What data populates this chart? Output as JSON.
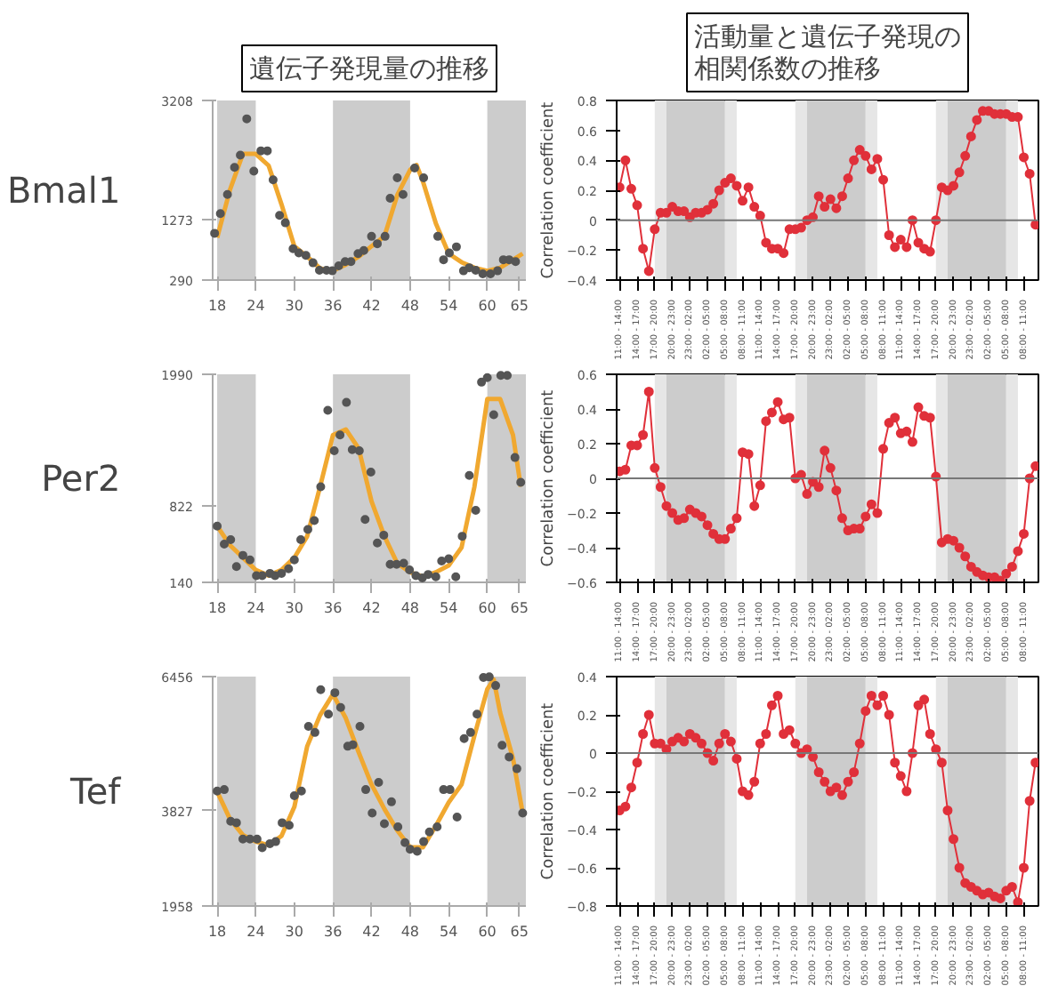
{
  "chart_data": [
    {
      "type": "scatter",
      "title": "遺伝子発現量の推移",
      "ylabel": "Bmal1",
      "xlim": [
        17.3,
        66
      ],
      "ylim": [
        290,
        3208
      ],
      "xticks": [
        18,
        24,
        30,
        36,
        42,
        48,
        54,
        60,
        65
      ],
      "yticks": [
        290,
        1273,
        3208
      ],
      "grid": false,
      "marker": "circle",
      "bands": [
        {
          "axis": "x",
          "from": 18,
          "to": 24,
          "color": "#cccccc"
        },
        {
          "axis": "x",
          "from": 36,
          "to": 48,
          "color": "#cccccc"
        },
        {
          "axis": "x",
          "from": 60,
          "to": 66,
          "color": "#cccccc"
        }
      ],
      "series": [
        {
          "type": "scatter",
          "color": "#555555",
          "x": [
            17.6,
            18.5,
            19.6,
            20.7,
            21.6,
            22.6,
            23.7,
            24.8,
            25.8,
            26.7,
            27.7,
            28.6,
            29.8,
            30.7,
            31.8,
            32.9,
            33.9,
            35,
            35.9,
            36.9,
            37.9,
            38.8,
            39.9,
            40.8,
            42,
            42.9,
            44.1,
            44.9,
            46,
            46.9,
            48.7,
            50.1,
            52.3,
            53.2,
            54.1,
            55.2,
            56.3,
            57.2,
            58.2,
            59.3,
            60.5,
            61.6,
            62.5,
            63.4,
            64.4
          ],
          "values": [
            1050,
            1370,
            1680,
            2120,
            2320,
            2910,
            2060,
            2390,
            2390,
            1920,
            1340,
            1220,
            800,
            730,
            690,
            570,
            450,
            450,
            440,
            520,
            590,
            590,
            720,
            770,
            1000,
            880,
            1000,
            1620,
            1950,
            1680,
            2110,
            1950,
            1000,
            620,
            730,
            830,
            440,
            490,
            450,
            390,
            390,
            440,
            620,
            620,
            590
          ]
        },
        {
          "type": "line",
          "marker": "none",
          "color": "#f0a830",
          "x": [
            18,
            20,
            22,
            24,
            26,
            28,
            30,
            32,
            34,
            36,
            38,
            40,
            42,
            44,
            46,
            48,
            49,
            50,
            52,
            54,
            56,
            58,
            60,
            62,
            64,
            65.5
          ],
          "values": [
            980,
            1760,
            2340,
            2340,
            2150,
            1520,
            840,
            670,
            480,
            440,
            540,
            670,
            840,
            1000,
            1670,
            2080,
            2160,
            1890,
            1210,
            720,
            580,
            490,
            440,
            490,
            620,
            720
          ]
        }
      ]
    },
    {
      "type": "line",
      "title": "活動量と遺伝子発現の相関係数の推移",
      "ylabel": "Correlation coefficient",
      "ylim": [
        -0.4,
        0.8
      ],
      "yticks": [
        -0.4,
        -0.2,
        0,
        0.2,
        0.4,
        0.6,
        0.8
      ],
      "categories": [
        "11:00 - 14:00",
        null,
        null,
        "14:00 - 17:00",
        null,
        null,
        "17:00 - 20:00",
        null,
        null,
        "20:00 - 23:00",
        null,
        null,
        "23:00 - 02:00",
        null,
        null,
        "02:00 - 05:00",
        null,
        null,
        "05:00 - 08:00",
        null,
        null,
        "08:00 - 11:00",
        null,
        null,
        "11:00 - 14:00",
        null,
        null,
        "14:00 - 17:00",
        null,
        null,
        "17:00 - 20:00",
        null,
        null,
        "20:00 - 23:00",
        null,
        null,
        "23:00 - 02:00",
        null,
        null,
        "02:00 - 05:00",
        null,
        null,
        "05:00 - 08:00",
        null,
        null,
        "08:00 - 11:00",
        null,
        null,
        "11:00 - 14:00",
        null,
        null,
        "14:00 - 17:00",
        null,
        null,
        "17:00 - 20:00",
        null,
        null,
        "20:00 - 23:00",
        null,
        null,
        "23:00 - 02:00",
        null,
        null,
        "02:00 - 05:00",
        null,
        null,
        "05:00 - 08:00",
        null,
        null,
        "08:00 - 11:00",
        null,
        null
      ],
      "grid": false,
      "marker": "circle",
      "ref_lines": [
        {
          "axis": "y",
          "value": 0,
          "color": "#777777"
        }
      ],
      "series": [
        {
          "color": "#e0303a",
          "values": [
            0.22,
            0.4,
            0.21,
            0.1,
            -0.19,
            -0.34,
            -0.06,
            0.05,
            0.05,
            0.09,
            0.06,
            0.06,
            0.02,
            0.05,
            0.05,
            0.07,
            0.11,
            0.2,
            0.25,
            0.28,
            0.23,
            0.13,
            0.22,
            0.09,
            0.03,
            -0.15,
            -0.19,
            -0.19,
            -0.22,
            -0.06,
            -0.06,
            -0.05,
            0,
            0.02,
            0.16,
            0.09,
            0.14,
            0.08,
            0.16,
            0.28,
            0.4,
            0.47,
            0.43,
            0.34,
            0.41,
            0.27,
            -0.1,
            -0.18,
            -0.13,
            -0.18,
            0,
            -0.15,
            -0.19,
            -0.21,
            0,
            0.22,
            0.2,
            0.23,
            0.32,
            0.43,
            0.56,
            0.67,
            0.73,
            0.73,
            0.71,
            0.71,
            0.71,
            0.69,
            0.69,
            0.42,
            0.31,
            -0.03
          ]
        }
      ]
    },
    {
      "type": "scatter",
      "ylabel": "Per2",
      "xlim": [
        17.3,
        66
      ],
      "ylim": [
        140,
        1990
      ],
      "xticks": [
        18,
        24,
        30,
        36,
        42,
        48,
        54,
        60,
        65
      ],
      "yticks": [
        140,
        822,
        1990
      ],
      "grid": false,
      "marker": "circle",
      "bands": [
        {
          "axis": "x",
          "from": 18,
          "to": 24,
          "color": "#cccccc"
        },
        {
          "axis": "x",
          "from": 36,
          "to": 48,
          "color": "#cccccc"
        },
        {
          "axis": "x",
          "from": 60,
          "to": 66,
          "color": "#cccccc"
        }
      ],
      "series": [
        {
          "type": "scatter",
          "color": "#555555",
          "x": [
            18,
            19.1,
            20.1,
            21,
            22,
            23.1,
            24.1,
            25,
            26.2,
            27,
            28,
            29.1,
            30,
            31,
            32.1,
            33.1,
            34.1,
            35.2,
            36.2,
            37.1,
            38.1,
            39,
            40.1,
            41,
            41.9,
            42.9,
            43.9,
            44.9,
            45.9,
            47,
            47.9,
            48.9,
            49.9,
            50.8,
            52,
            52.9,
            54,
            55.1,
            56.1,
            57.2,
            58.2,
            59.1,
            60,
            61,
            62.1,
            63.1,
            64.3,
            65.2
          ],
          "values": [
            640,
            480,
            520,
            280,
            380,
            340,
            200,
            200,
            220,
            200,
            220,
            260,
            340,
            520,
            610,
            690,
            990,
            1670,
            1310,
            1450,
            1740,
            1320,
            1310,
            700,
            1120,
            490,
            560,
            300,
            300,
            310,
            250,
            200,
            180,
            210,
            190,
            330,
            350,
            190,
            550,
            1090,
            780,
            1920,
            1960,
            1630,
            1980,
            1980,
            1250,
            1030
          ]
        },
        {
          "type": "line",
          "marker": "none",
          "color": "#f0a830",
          "x": [
            18,
            20,
            22,
            24,
            26,
            28,
            30,
            32,
            34,
            36,
            38,
            40,
            42,
            44,
            46,
            48,
            50,
            52,
            54,
            56,
            58,
            60,
            62,
            64,
            65.2
          ],
          "values": [
            640,
            470,
            360,
            250,
            200,
            250,
            360,
            550,
            990,
            1450,
            1500,
            1330,
            860,
            550,
            310,
            230,
            190,
            230,
            290,
            450,
            990,
            1770,
            1770,
            1450,
            990
          ]
        }
      ]
    },
    {
      "type": "line",
      "ylabel": "Correlation coefficient",
      "ylim": [
        -0.6,
        0.6
      ],
      "yticks": [
        -0.6,
        -0.4,
        -0.2,
        0,
        0.2,
        0.4,
        0.6
      ],
      "categories": [
        "11:00 - 14:00",
        null,
        null,
        "14:00 - 17:00",
        null,
        null,
        "17:00 - 20:00",
        null,
        null,
        "20:00 - 23:00",
        null,
        null,
        "23:00 - 02:00",
        null,
        null,
        "02:00 - 05:00",
        null,
        null,
        "05:00 - 08:00",
        null,
        null,
        "08:00 - 11:00",
        null,
        null,
        "11:00 - 14:00",
        null,
        null,
        "14:00 - 17:00",
        null,
        null,
        "17:00 - 20:00",
        null,
        null,
        "20:00 - 23:00",
        null,
        null,
        "23:00 - 02:00",
        null,
        null,
        "02:00 - 05:00",
        null,
        null,
        "05:00 - 08:00",
        null,
        null,
        "08:00 - 11:00",
        null,
        null,
        "11:00 - 14:00",
        null,
        null,
        "14:00 - 17:00",
        null,
        null,
        "17:00 - 20:00",
        null,
        null,
        "20:00 - 23:00",
        null,
        null,
        "23:00 - 02:00",
        null,
        null,
        "02:00 - 05:00",
        null,
        null,
        "05:00 - 08:00",
        null,
        null,
        "08:00 - 11:00",
        null,
        null
      ],
      "grid": false,
      "marker": "circle",
      "ref_lines": [
        {
          "axis": "y",
          "value": 0,
          "color": "#777777"
        }
      ],
      "series": [
        {
          "color": "#e0303a",
          "values": [
            0.04,
            0.05,
            0.19,
            0.19,
            0.25,
            0.5,
            0.06,
            -0.05,
            -0.16,
            -0.2,
            -0.24,
            -0.23,
            -0.18,
            -0.2,
            -0.22,
            -0.27,
            -0.32,
            -0.35,
            -0.35,
            -0.29,
            -0.23,
            0.15,
            0.14,
            -0.16,
            -0.04,
            0.33,
            0.38,
            0.44,
            0.34,
            0.35,
            0,
            0.02,
            -0.09,
            -0.02,
            -0.05,
            0.16,
            0.06,
            -0.07,
            -0.23,
            -0.3,
            -0.29,
            -0.29,
            -0.22,
            -0.15,
            -0.2,
            0.17,
            0.32,
            0.35,
            0.26,
            0.27,
            0.21,
            0.41,
            0.36,
            0.35,
            0.01,
            -0.37,
            -0.35,
            -0.36,
            -0.4,
            -0.45,
            -0.51,
            -0.54,
            -0.56,
            -0.57,
            -0.57,
            -0.59,
            -0.55,
            -0.51,
            -0.42,
            -0.32,
            0,
            0.07
          ]
        }
      ]
    },
    {
      "type": "scatter",
      "ylabel": "Tef",
      "xlim": [
        17.3,
        66
      ],
      "ylim": [
        1958,
        6456
      ],
      "xticks": [
        18,
        24,
        30,
        36,
        42,
        48,
        54,
        60,
        65
      ],
      "yticks": [
        1958,
        3827,
        6456
      ],
      "grid": false,
      "marker": "circle",
      "bands": [
        {
          "axis": "x",
          "from": 18,
          "to": 24,
          "color": "#cccccc"
        },
        {
          "axis": "x",
          "from": 36,
          "to": 48,
          "color": "#cccccc"
        },
        {
          "axis": "x",
          "from": 60,
          "to": 66,
          "color": "#cccccc"
        }
      ],
      "series": [
        {
          "type": "scatter",
          "color": "#555555",
          "x": [
            18,
            19.1,
            20.1,
            21,
            22,
            23.1,
            24.2,
            25,
            26.2,
            27.1,
            28.1,
            29.2,
            30,
            31.1,
            32.2,
            33.2,
            34.1,
            35.3,
            36.3,
            37.2,
            38.3,
            39.1,
            40.2,
            41.1,
            42.1,
            43.1,
            44,
            45.1,
            46.1,
            47.2,
            48,
            49.1,
            50.1,
            51,
            52.2,
            53.2,
            54.2,
            55.3,
            56.4,
            57.4,
            58.4,
            59.4,
            60.3,
            61.3,
            62.3,
            63.4,
            64.6,
            65.5
          ],
          "values": [
            4210,
            4240,
            3620,
            3590,
            3270,
            3270,
            3270,
            3100,
            3180,
            3220,
            3590,
            3540,
            4120,
            4210,
            5480,
            5360,
            6200,
            5720,
            6140,
            5850,
            5090,
            5120,
            5480,
            4240,
            3780,
            4380,
            3570,
            4000,
            3510,
            3200,
            3070,
            3030,
            3220,
            3410,
            3510,
            4240,
            4240,
            3700,
            5240,
            5360,
            5720,
            6440,
            6450,
            6280,
            5110,
            4880,
            4650,
            3780
          ]
        },
        {
          "type": "line",
          "marker": "none",
          "color": "#f0a830",
          "x": [
            18,
            20,
            22,
            24,
            26,
            28,
            30,
            32,
            34,
            36,
            38,
            40,
            42,
            44,
            46,
            48,
            50,
            52,
            54,
            56,
            58,
            60,
            61,
            62,
            64,
            65.5
          ],
          "values": [
            4200,
            3660,
            3350,
            3220,
            3150,
            3330,
            3900,
            5090,
            5700,
            6110,
            5640,
            4970,
            4340,
            3860,
            3440,
            3110,
            3110,
            3530,
            3990,
            4340,
            5300,
            6210,
            6400,
            5750,
            4850,
            3780
          ]
        }
      ]
    },
    {
      "type": "line",
      "ylabel": "Correlation coefficient",
      "ylim": [
        -0.8,
        0.4
      ],
      "yticks": [
        -0.8,
        -0.6,
        -0.4,
        -0.2,
        0,
        0.2,
        0.4
      ],
      "categories": [
        "11:00 - 14:00",
        null,
        null,
        "14:00 - 17:00",
        null,
        null,
        "17:00 - 20:00",
        null,
        null,
        "20:00 - 23:00",
        null,
        null,
        "23:00 - 02:00",
        null,
        null,
        "02:00 - 05:00",
        null,
        null,
        "05:00 - 08:00",
        null,
        null,
        "08:00 - 11:00",
        null,
        null,
        "11:00 - 14:00",
        null,
        null,
        "14:00 - 17:00",
        null,
        null,
        "17:00 - 20:00",
        null,
        null,
        "20:00 - 23:00",
        null,
        null,
        "23:00 - 02:00",
        null,
        null,
        "02:00 - 05:00",
        null,
        null,
        "05:00 - 08:00",
        null,
        null,
        "08:00 - 11:00",
        null,
        null,
        "11:00 - 14:00",
        null,
        null,
        "14:00 - 17:00",
        null,
        null,
        "17:00 - 20:00",
        null,
        null,
        "20:00 - 23:00",
        null,
        null,
        "23:00 - 02:00",
        null,
        null,
        "02:00 - 05:00",
        null,
        null,
        "05:00 - 08:00",
        null,
        null,
        "08:00 - 11:00",
        null,
        null
      ],
      "grid": false,
      "marker": "circle",
      "ref_lines": [
        {
          "axis": "y",
          "value": 0,
          "color": "#777777"
        }
      ],
      "series": [
        {
          "color": "#e0303a",
          "values": [
            -0.3,
            -0.28,
            -0.18,
            -0.05,
            0.1,
            0.2,
            0.05,
            0.05,
            0.02,
            0.06,
            0.08,
            0.06,
            0.1,
            0.08,
            0.05,
            0.0,
            -0.04,
            0.05,
            0.1,
            0.06,
            -0.03,
            -0.2,
            -0.22,
            -0.15,
            0.05,
            0.1,
            0.25,
            0.3,
            0.1,
            0.12,
            0.05,
            0.0,
            0.02,
            -0.02,
            -0.1,
            -0.15,
            -0.2,
            -0.18,
            -0.22,
            -0.15,
            -0.1,
            0.05,
            0.22,
            0.3,
            0.25,
            0.3,
            0.2,
            -0.05,
            -0.12,
            -0.2,
            0.0,
            0.25,
            0.28,
            0.1,
            0.02,
            -0.05,
            -0.3,
            -0.45,
            -0.6,
            -0.68,
            -0.7,
            -0.72,
            -0.74,
            -0.73,
            -0.75,
            -0.76,
            -0.72,
            -0.7,
            -0.78,
            -0.6,
            -0.25,
            -0.05
          ]
        }
      ]
    }
  ]
}
